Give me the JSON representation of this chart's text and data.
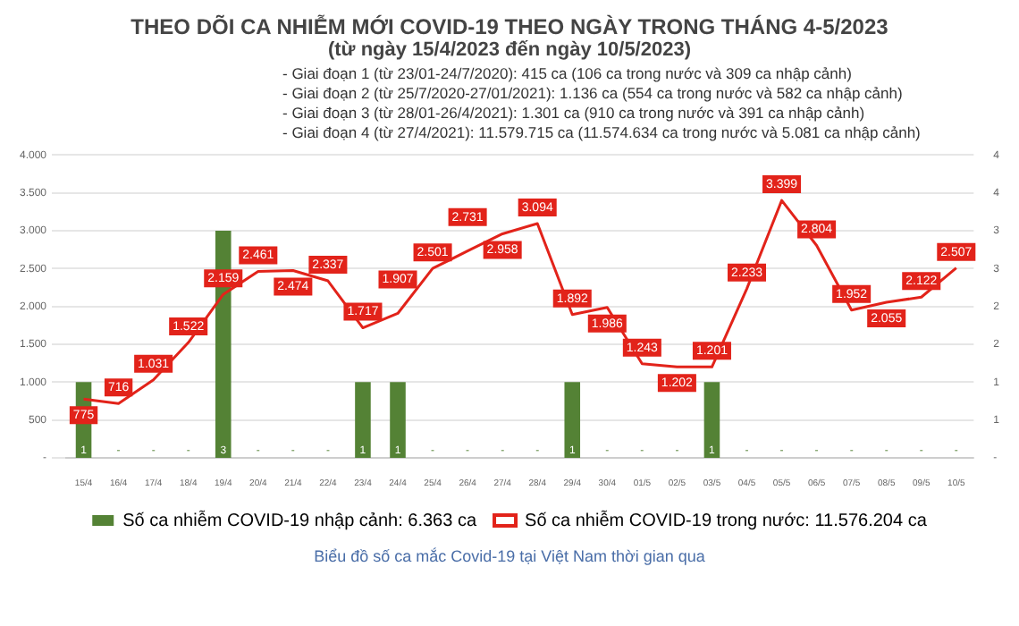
{
  "chart_data": {
    "type": "bar",
    "title": "THEO DÕI CA NHIỄM MỚI COVID-19 THEO NGÀY TRONG THÁNG 4-5/2023",
    "subtitle": "(từ ngày 15/4/2023 đến ngày 10/5/2023)",
    "annotations": [
      "- Giai đoạn 1 (từ 23/01-24/7/2020): 415 ca (106 ca trong nước và 309 ca nhập cảnh)",
      "- Giai đoạn 2 (từ 25/7/2020-27/01/2021): 1.136 ca (554 ca trong nước và 582 ca nhập cảnh)",
      "- Giai đoạn 3 (từ 28/01-26/4/2021): 1.301 ca (910 ca trong nước và 391 ca nhập cảnh)",
      "- Giai đoạn 4 (từ 27/4/2021): 11.579.715 ca (11.574.634 ca trong nước và 5.081 ca nhập cảnh)",
      "Biểu đồ số ca mắc Covid-19 tại Việt Nam thời gian qua"
    ],
    "categories": [
      "15/4",
      "16/4",
      "17/4",
      "18/4",
      "19/4",
      "20/4",
      "21/4",
      "22/4",
      "23/4",
      "24/4",
      "25/4",
      "26/4",
      "27/4",
      "28/4",
      "29/4",
      "30/4",
      "01/5",
      "02/5",
      "03/5",
      "04/5",
      "05/5",
      "06/5",
      "07/5",
      "08/5",
      "09/5",
      "10/5"
    ],
    "series": [
      {
        "name": "Số ca nhiễm COVID-19 nhập cảnh: 6.363 ca",
        "axis": "y2",
        "color": "#548235",
        "values": [
          1,
          0,
          0,
          0,
          3,
          0,
          0,
          0,
          1,
          1,
          0,
          0,
          0,
          0,
          1,
          0,
          0,
          0,
          1,
          0,
          0,
          0,
          0,
          0,
          0,
          0
        ],
        "value_labels": [
          "1",
          "-",
          "-",
          "-",
          "3",
          "-",
          "-",
          "-",
          "1",
          "1",
          "-",
          "-",
          "-",
          "-",
          "1",
          "-",
          "-",
          "-",
          "1",
          "-",
          "-",
          "-",
          "-",
          "-",
          "-",
          "-"
        ]
      },
      {
        "name": "Số ca nhiễm COVID-19 trong nước: 11.576.204 ca",
        "type": "line",
        "color": "#e2231a",
        "values": [
          775,
          716,
          1031,
          1522,
          2159,
          2461,
          2474,
          2337,
          1717,
          1907,
          2501,
          2731,
          2958,
          3094,
          1892,
          1986,
          1243,
          1202,
          1201,
          2233,
          3399,
          2804,
          1952,
          2055,
          2122,
          2507
        ],
        "value_labels": [
          "775",
          "716",
          "1.031",
          "1.522",
          "2.159",
          "2.461",
          "2.474",
          "2.337",
          "1.717",
          "1.907",
          "2.501",
          "2.731",
          "2.958",
          "3.094",
          "1.892",
          "1.986",
          "1.243",
          "1.202",
          "1.201",
          "2.233",
          "3.399",
          "2.804",
          "1.952",
          "2.055",
          "2.122",
          "2.507"
        ]
      }
    ],
    "ylim": [
      0,
      4000
    ],
    "yticks": [
      {
        "value": 0,
        "label": "-"
      },
      {
        "value": 500,
        "label": "500"
      },
      {
        "value": 1000,
        "label": "1.000"
      },
      {
        "value": 1500,
        "label": "1.500"
      },
      {
        "value": 2000,
        "label": "2.000"
      },
      {
        "value": 2500,
        "label": "2.500"
      },
      {
        "value": 3000,
        "label": "3.000"
      },
      {
        "value": 3500,
        "label": "3.500"
      },
      {
        "value": 4000,
        "label": "4.000"
      }
    ],
    "y2lim": [
      0,
      4
    ],
    "y2ticks": [
      {
        "value": 0,
        "label": "-"
      },
      {
        "value": 0.5,
        "label": "1"
      },
      1,
      {
        "value": 1.5,
        "label": "2"
      },
      2,
      {
        "value": 2.5,
        "label": "3"
      },
      3,
      {
        "value": 3.5,
        "label": "4"
      },
      4
    ],
    "grid": "y",
    "legend": "bottom"
  }
}
